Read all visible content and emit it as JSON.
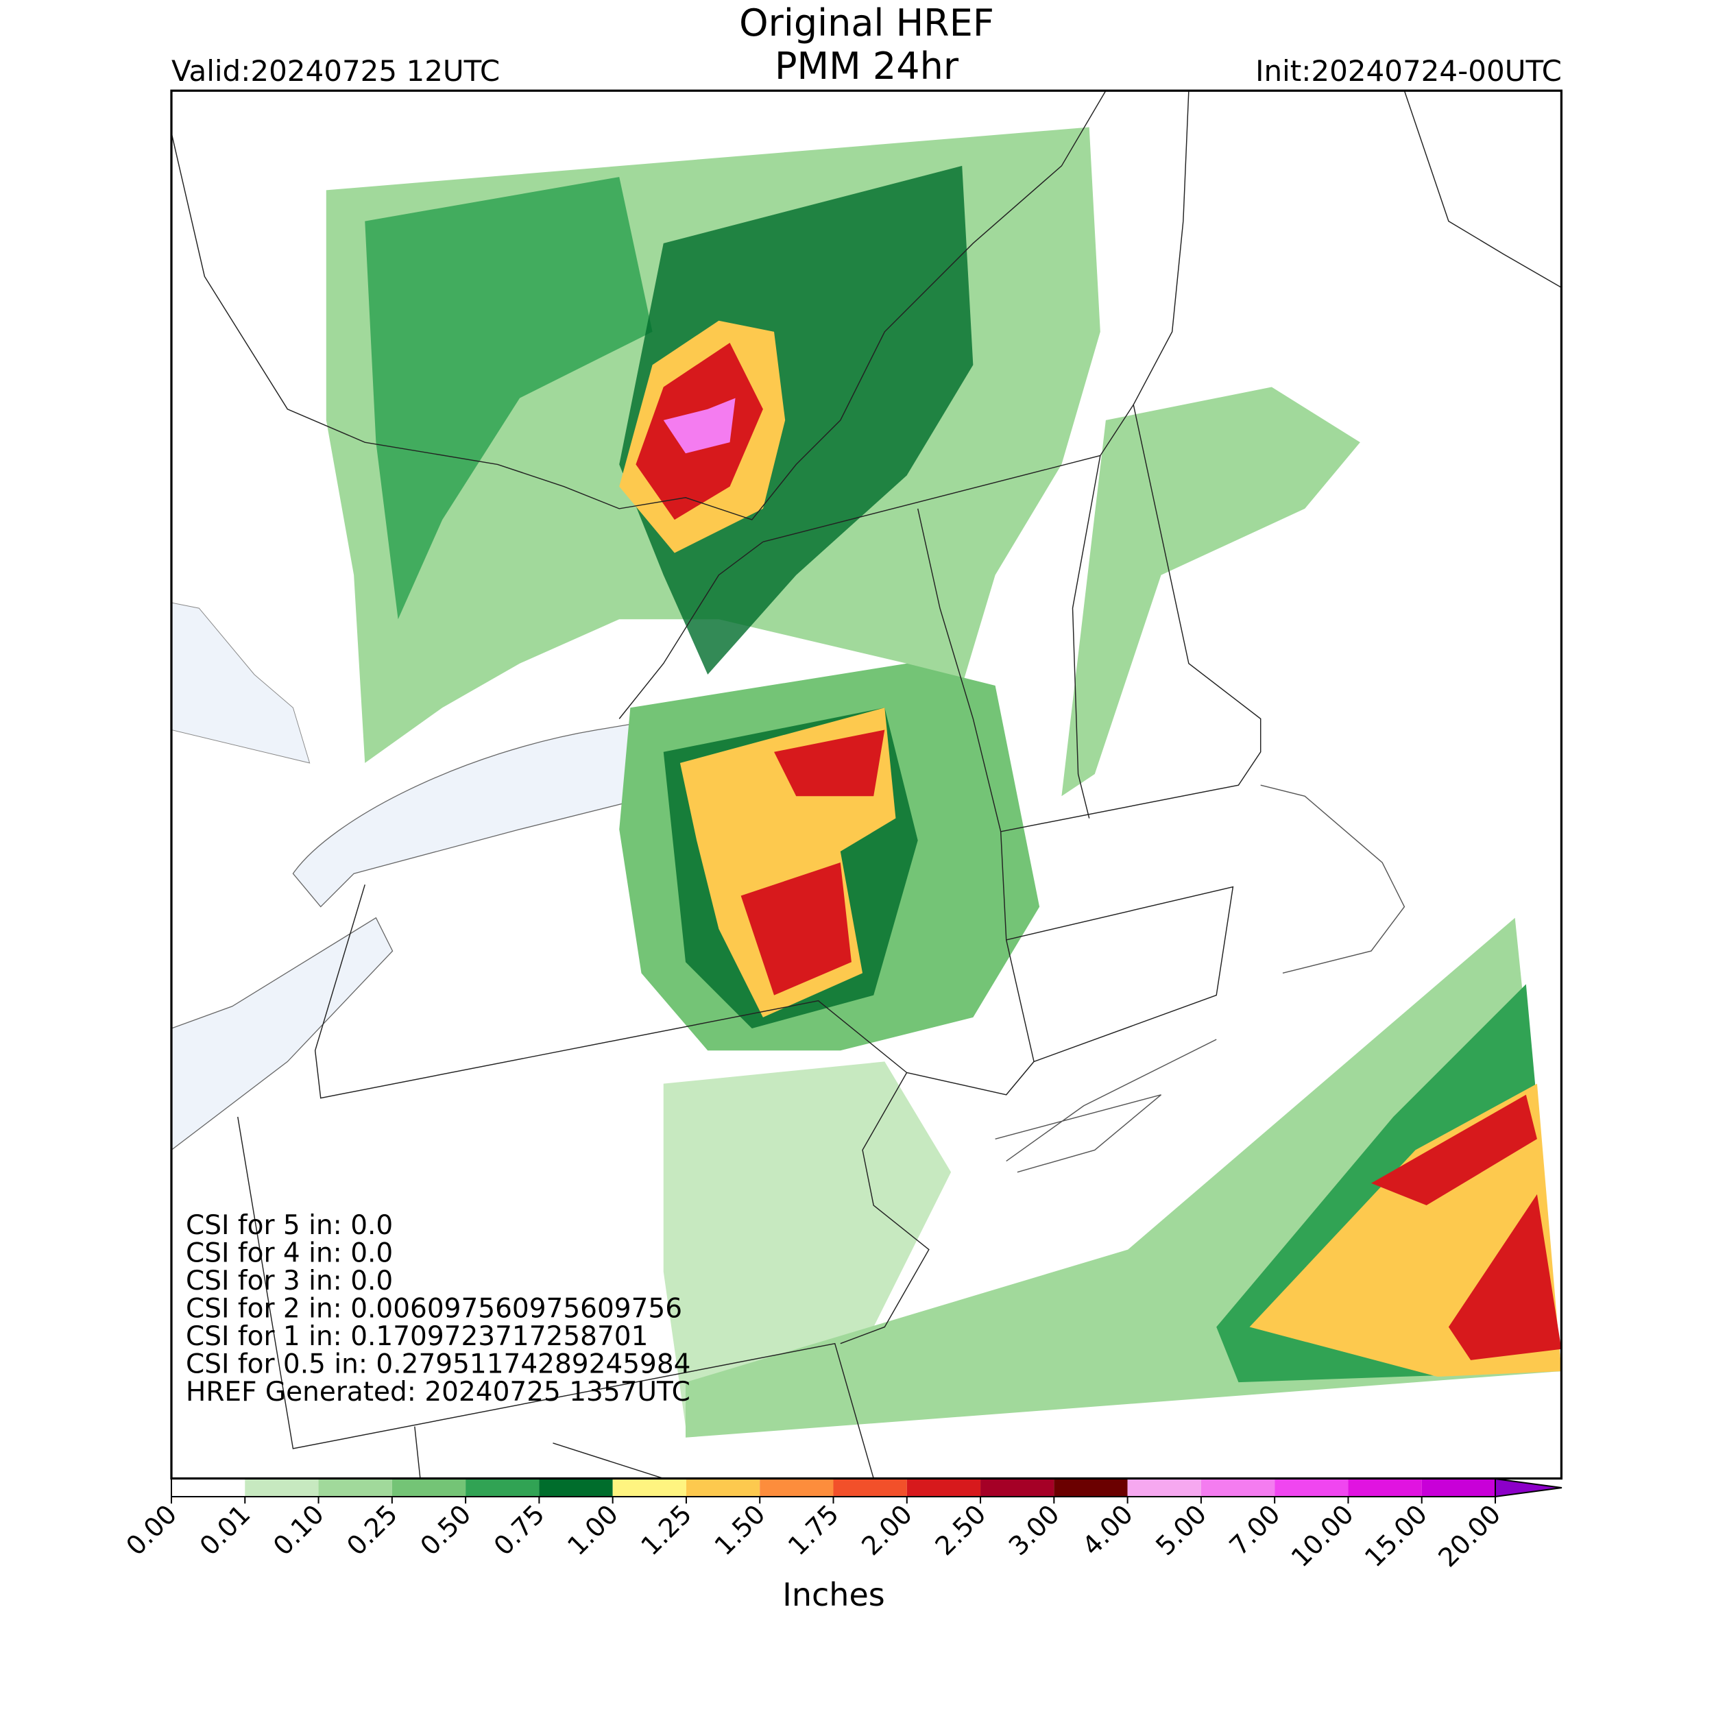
{
  "header": {
    "title": "Original HREF",
    "subtitle": "PMM 24hr",
    "valid": "Valid:20240725 12UTC",
    "init": "Init:20240724-00UTC"
  },
  "stats": [
    "CSI for 5 in: 0.0",
    "CSI for 4 in: 0.0",
    "CSI for 3 in: 0.0",
    "CSI for 2 in: 0.006097560975609756",
    "CSI for 1 in: 0.1709723717258701",
    "CSI for 0.5 in: 0.27951174289245984",
    "HREF Generated: 20240725 1357UTC"
  ],
  "colorbar": {
    "label": "Inches",
    "ticks": [
      "0.00",
      "0.01",
      "0.10",
      "0.25",
      "0.50",
      "0.75",
      "1.00",
      "1.25",
      "1.50",
      "1.75",
      "2.00",
      "2.50",
      "3.00",
      "4.00",
      "5.00",
      "7.00",
      "10.00",
      "15.00",
      "20.00"
    ],
    "colors": [
      "#ffffff",
      "#c7e9c0",
      "#a1d99b",
      "#74c476",
      "#31a354",
      "#006d2c",
      "#fff480",
      "#fdc94e",
      "#fd8d3c",
      "#f2502a",
      "#d7191c",
      "#a50026",
      "#6b0000",
      "#f6a8f0",
      "#f47cf0",
      "#f046f0",
      "#e014e0",
      "#c800d8",
      "#8c00c8"
    ]
  }
}
